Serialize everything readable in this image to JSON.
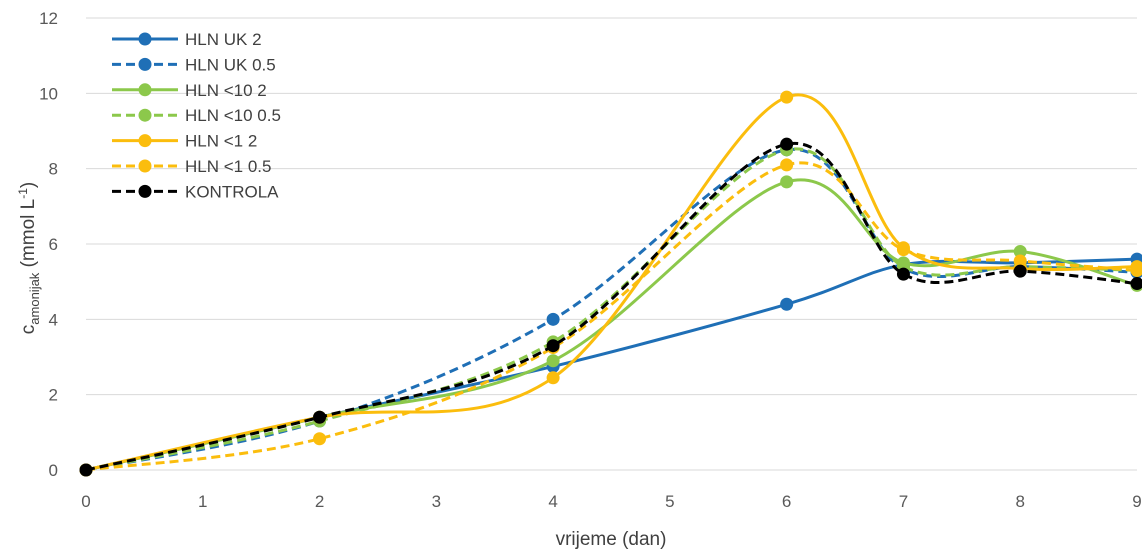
{
  "chart_data": {
    "type": "line",
    "xlabel": "vrijeme (dan)",
    "ylabel": {
      "main": "c",
      "subscript": "amonijak",
      "unit_open": " (mmol L",
      "unit_sup": "-1",
      "unit_close": ")"
    },
    "xlim": [
      0,
      9
    ],
    "ylim": [
      0,
      12
    ],
    "xticks": [
      "0",
      "1",
      "2",
      "3",
      "4",
      "5",
      "6",
      "7",
      "8",
      "9"
    ],
    "yticks": [
      "0",
      "2",
      "4",
      "6",
      "8",
      "10",
      "12"
    ],
    "grid": "horizontal",
    "legend_position": "top-left",
    "x": [
      0,
      2,
      4,
      6,
      7,
      8,
      9
    ],
    "series": [
      {
        "name": "HLN UK 2",
        "color": "#1f6fb6",
        "dash": "solid",
        "values": [
          0,
          1.4,
          2.75,
          4.4,
          5.45,
          5.5,
          5.6
        ]
      },
      {
        "name": "HLN UK 0.5",
        "color": "#1f6fb6",
        "dash": "dashed",
        "values": [
          0,
          1.3,
          4.0,
          8.5,
          5.35,
          5.4,
          5.25
        ]
      },
      {
        "name": "HLN <10 2",
        "color": "#8cc84b",
        "dash": "solid",
        "values": [
          0,
          1.4,
          2.9,
          7.65,
          5.5,
          5.8,
          4.9
        ]
      },
      {
        "name": "HLN <10 0.5",
        "color": "#8cc84b",
        "dash": "dashed",
        "values": [
          0,
          1.3,
          3.4,
          8.5,
          5.4,
          5.4,
          5.3
        ]
      },
      {
        "name": "HLN <1 2",
        "color": "#fbbd0d",
        "dash": "solid",
        "values": [
          0,
          1.4,
          2.45,
          9.9,
          5.9,
          5.35,
          5.4
        ]
      },
      {
        "name": "HLN <1 0.5",
        "color": "#fbbd0d",
        "dash": "dashed",
        "values": [
          0,
          0.83,
          3.25,
          8.1,
          5.85,
          5.55,
          5.3
        ]
      },
      {
        "name": "KONTROLA",
        "color": "#000000",
        "dash": "dashed",
        "values": [
          0,
          1.4,
          3.3,
          8.65,
          5.2,
          5.28,
          4.95
        ]
      }
    ]
  }
}
